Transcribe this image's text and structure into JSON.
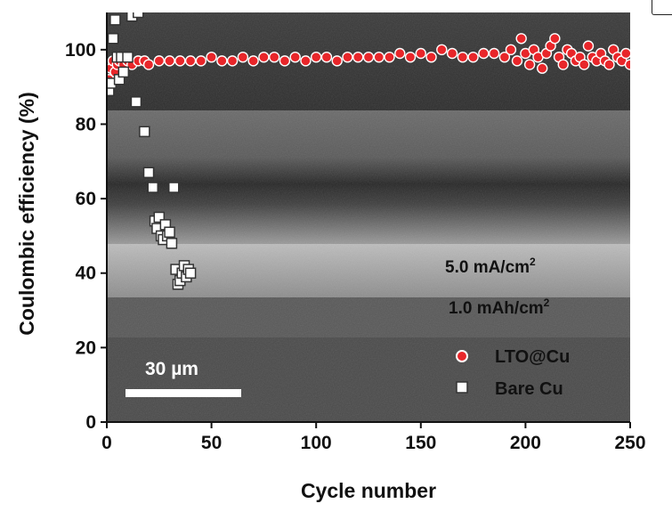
{
  "chart_data": {
    "type": "scatter",
    "xlabel": "Cycle number",
    "ylabel": "Coulombic efficiency (%)",
    "xlim": [
      0,
      250
    ],
    "ylim": [
      0,
      110
    ],
    "xticks": [
      0,
      50,
      100,
      150,
      200,
      250
    ],
    "yticks": [
      0,
      20,
      40,
      60,
      80,
      100
    ],
    "xtick_labels": [
      "0",
      "50",
      "100",
      "150",
      "200",
      "250"
    ],
    "ytick_labels": [
      "0",
      "20",
      "40",
      "60",
      "80",
      "100"
    ],
    "grid": false,
    "legend_position": "bottom-right",
    "background_image": "cross-sectional SEM micrograph (layered film)",
    "annotations": {
      "current_density": "5.0 mA/cm",
      "capacity": "1.0 mAh/cm",
      "superscript": "2"
    },
    "scale_bar": {
      "label": "30 µm"
    },
    "series": [
      {
        "name": "LTO@Cu",
        "marker": "circle",
        "color": "#e8262a",
        "edge": "#ffffff",
        "x": [
          1,
          2,
          3,
          4,
          5,
          6,
          8,
          10,
          12,
          15,
          18,
          20,
          25,
          30,
          35,
          40,
          45,
          50,
          55,
          60,
          65,
          70,
          75,
          80,
          85,
          90,
          95,
          100,
          105,
          110,
          115,
          120,
          125,
          130,
          135,
          140,
          145,
          150,
          155,
          160,
          165,
          170,
          175,
          180,
          185,
          190,
          193,
          196,
          198,
          200,
          202,
          204,
          206,
          208,
          210,
          212,
          214,
          216,
          218,
          220,
          222,
          224,
          226,
          228,
          230,
          232,
          234,
          236,
          238,
          240,
          242,
          244,
          246,
          248,
          250
        ],
        "y": [
          92,
          95,
          97,
          94,
          96,
          97,
          96,
          97,
          96,
          97,
          97,
          96,
          97,
          97,
          97,
          97,
          97,
          98,
          97,
          97,
          98,
          97,
          98,
          98,
          97,
          98,
          97,
          98,
          98,
          97,
          98,
          98,
          98,
          98,
          98,
          99,
          98,
          99,
          98,
          100,
          99,
          98,
          98,
          99,
          99,
          98,
          100,
          97,
          103,
          99,
          96,
          100,
          98,
          95,
          99,
          101,
          103,
          98,
          96,
          100,
          99,
          97,
          98,
          96,
          101,
          98,
          97,
          99,
          97,
          96,
          100,
          98,
          97,
          99,
          96
        ]
      },
      {
        "name": "Bare Cu",
        "marker": "square",
        "color": "#ffffff",
        "edge": "#333333",
        "x": [
          1,
          2,
          3,
          4,
          5,
          6,
          7,
          8,
          10,
          12,
          14,
          15,
          18,
          20,
          22,
          23,
          24,
          25,
          26,
          27,
          28,
          29,
          30,
          31,
          32,
          33,
          34,
          35,
          36,
          37,
          38,
          39,
          40
        ],
        "y": [
          89,
          91,
          103,
          108,
          98,
          92,
          98,
          94,
          98,
          109,
          86,
          110,
          78,
          67,
          63,
          54,
          52,
          55,
          50,
          49,
          53,
          50,
          51,
          48,
          63,
          41,
          37,
          38,
          40,
          42,
          39,
          41,
          40
        ]
      }
    ]
  }
}
